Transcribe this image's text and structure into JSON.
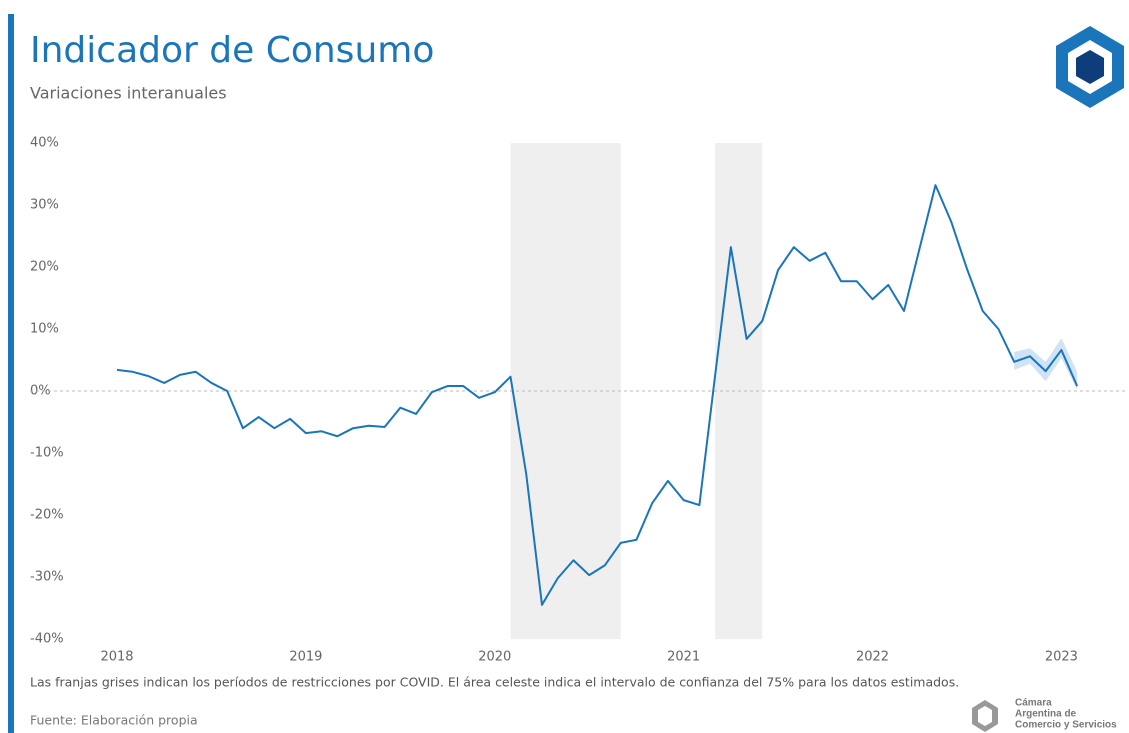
{
  "chart_data": {
    "type": "line",
    "title": "Indicador de Consumo",
    "subtitle": "Variaciones interanuales",
    "note": "Las franjas grises indican los períodos de restricciones por COVID. El área celeste indica el intervalo de confianza del 75% para los datos estimados.",
    "source": "Fuente: Elaboración propia",
    "logo_text": [
      "Cámara",
      "Argentina de",
      "Comercio y Servicios"
    ],
    "categories": [
      "2018",
      null,
      null,
      null,
      null,
      null,
      null,
      null,
      null,
      null,
      null,
      null,
      "2019",
      null,
      null,
      null,
      null,
      null,
      null,
      null,
      null,
      null,
      null,
      null,
      "2020",
      null,
      null,
      null,
      null,
      null,
      null,
      null,
      null,
      null,
      null,
      null,
      "2021",
      null,
      null,
      null,
      null,
      null,
      null,
      null,
      null,
      null,
      null,
      null,
      "2022",
      null,
      null,
      null,
      null,
      null,
      null,
      null,
      null,
      null,
      null,
      null,
      "2023",
      null
    ],
    "series": [
      {
        "color": "#1a75bb",
        "values": [
          3.4,
          3.1,
          2.4,
          1.3,
          2.6,
          3.1,
          1.3,
          0,
          -6.0,
          -4.2,
          -6.0,
          -4.5,
          -6.8,
          -6.5,
          -7.3,
          -6.0,
          -5.6,
          -5.8,
          -2.7,
          -3.7,
          -0.2,
          0.8,
          0.8,
          -1.1,
          -0.2,
          2.3,
          -13.4,
          -34.5,
          -30.2,
          -27.3,
          -29.7,
          -28.1,
          -24.5,
          -24.0,
          -18.1,
          -14.5,
          -17.6,
          -18.4,
          2.5,
          23.2,
          8.4,
          11.3,
          19.5,
          23.2,
          21.0,
          22.3,
          17.7,
          17.7,
          14.8,
          17.1,
          12.9,
          23.1,
          33.2,
          27.3,
          19.7,
          12.9,
          10.0,
          4.7,
          5.6,
          3.2,
          6.6,
          0.8
        ]
      }
    ],
    "confidence_band": {
      "color": "#cfe3f5",
      "lower": [
        null,
        null,
        null,
        null,
        null,
        null,
        null,
        null,
        null,
        null,
        null,
        null,
        null,
        null,
        null,
        null,
        null,
        null,
        null,
        null,
        null,
        null,
        null,
        null,
        null,
        null,
        null,
        null,
        null,
        null,
        null,
        null,
        null,
        null,
        null,
        null,
        null,
        null,
        null,
        null,
        null,
        null,
        null,
        null,
        null,
        null,
        null,
        null,
        null,
        null,
        null,
        null,
        null,
        null,
        null,
        null,
        null,
        3.4,
        4.4,
        1.6,
        5.3,
        0.2
      ],
      "upper": [
        null,
        null,
        null,
        null,
        null,
        null,
        null,
        null,
        null,
        null,
        null,
        null,
        null,
        null,
        null,
        null,
        null,
        null,
        null,
        null,
        null,
        null,
        null,
        null,
        null,
        null,
        null,
        null,
        null,
        null,
        null,
        null,
        null,
        null,
        null,
        null,
        null,
        null,
        null,
        null,
        null,
        null,
        null,
        null,
        null,
        null,
        null,
        null,
        null,
        null,
        null,
        null,
        null,
        null,
        null,
        null,
        null,
        6.3,
        6.9,
        4.7,
        8.5,
        3.1
      ]
    },
    "shaded_spans": [
      [
        25,
        32
      ],
      [
        38,
        41
      ]
    ],
    "shade_color": "#efefef",
    "ylim": [
      -40,
      40
    ],
    "yticks": [
      {
        "value": 40,
        "label": "40%"
      },
      {
        "value": 30,
        "label": "30%"
      },
      {
        "value": 20,
        "label": "20%"
      },
      {
        "value": 10,
        "label": "10%"
      },
      {
        "value": 0,
        "label": "0%"
      },
      {
        "value": -10,
        "label": "-10%"
      },
      {
        "value": -20,
        "label": "-20%"
      },
      {
        "value": -30,
        "label": "-30%"
      },
      {
        "value": -40,
        "label": "-40%"
      }
    ],
    "zero_line": true
  }
}
